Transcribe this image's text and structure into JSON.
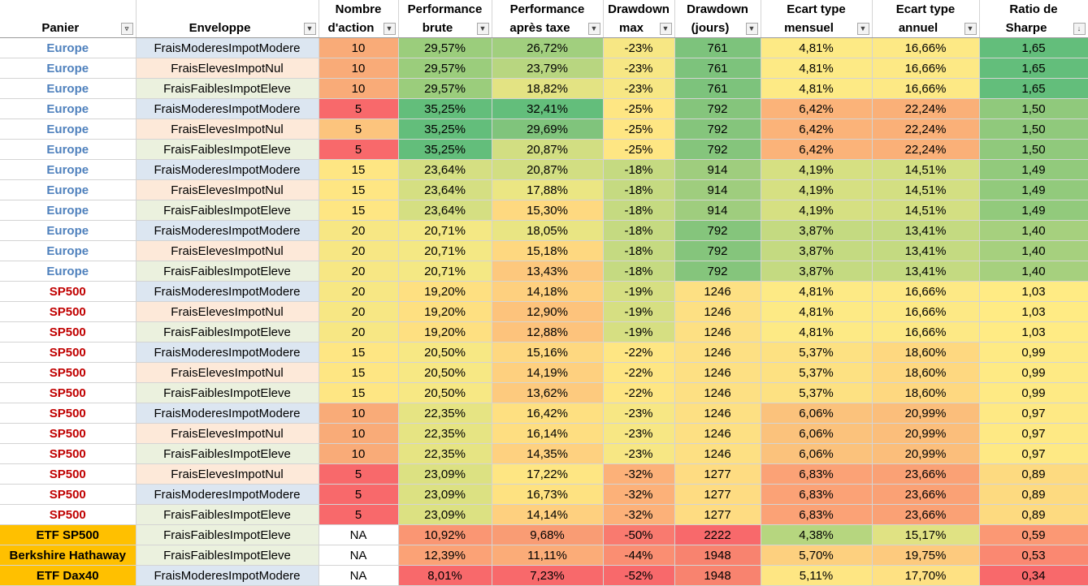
{
  "columns": [
    {
      "line1": "",
      "line2": "Panier",
      "filter": "funnel"
    },
    {
      "line1": "",
      "line2": "Enveloppe",
      "filter": "dropdown"
    },
    {
      "line1": "Nombre",
      "line2": "d'action",
      "filter": "dropdown"
    },
    {
      "line1": "Performance",
      "line2": "brute",
      "filter": "dropdown"
    },
    {
      "line1": "Performance",
      "line2": "après taxe",
      "filter": "dropdown"
    },
    {
      "line1": "Drawdown",
      "line2": "max",
      "filter": "dropdown"
    },
    {
      "line1": "Drawdown",
      "line2": "(jours)",
      "filter": "dropdown"
    },
    {
      "line1": "Ecart type",
      "line2": "mensuel",
      "filter": "dropdown"
    },
    {
      "line1": "Ecart type",
      "line2": "annuel",
      "filter": "dropdown"
    },
    {
      "line1": "Ratio de",
      "line2": "Sharpe",
      "filter": "sort-desc"
    }
  ],
  "rows": [
    {
      "panier": "Europe",
      "env": "FraisModeresImpotModere",
      "cells": [
        "10",
        "29,57%",
        "26,72%",
        "-23%",
        "761",
        "4,81%",
        "16,66%",
        "1,65"
      ],
      "colors": [
        "#f9ab78",
        "#9bcd7c",
        "#a1cf7e",
        "#f7e784",
        "#7dc37c",
        "#fdea85",
        "#fde985",
        "#63be7b"
      ]
    },
    {
      "panier": "Europe",
      "env": "FraisElevesImpotNul",
      "cells": [
        "10",
        "29,57%",
        "23,79%",
        "-23%",
        "761",
        "4,81%",
        "16,66%",
        "1,65"
      ],
      "colors": [
        "#f9ab78",
        "#9bcd7c",
        "#b8d680",
        "#f7e784",
        "#7dc37c",
        "#fdea85",
        "#fde985",
        "#63be7b"
      ]
    },
    {
      "panier": "Europe",
      "env": "FraisFaiblesImpotEleve",
      "cells": [
        "10",
        "29,57%",
        "18,82%",
        "-23%",
        "761",
        "4,81%",
        "16,66%",
        "1,65"
      ],
      "colors": [
        "#f9ab78",
        "#9bcd7c",
        "#e3e383",
        "#f7e784",
        "#7dc37c",
        "#fdea85",
        "#fde985",
        "#63be7b"
      ]
    },
    {
      "panier": "Europe",
      "env": "FraisModeresImpotModere",
      "cells": [
        "5",
        "35,25%",
        "32,41%",
        "-25%",
        "792",
        "6,42%",
        "22,24%",
        "1,50"
      ],
      "colors": [
        "#f8696b",
        "#63be7b",
        "#63be7b",
        "#fee683",
        "#85c57c",
        "#fbb379",
        "#fab078",
        "#90c97c"
      ]
    },
    {
      "panier": "Europe",
      "env": "FraisElevesImpotNul",
      "cells": [
        "5",
        "35,25%",
        "29,69%",
        "-25%",
        "792",
        "6,42%",
        "22,24%",
        "1,50"
      ],
      "colors": [
        "#fcc47d",
        "#63be7b",
        "#80c47c",
        "#fee683",
        "#85c57c",
        "#fbb379",
        "#fab078",
        "#90c97c"
      ]
    },
    {
      "panier": "Europe",
      "env": "FraisFaiblesImpotEleve",
      "cells": [
        "5",
        "35,25%",
        "20,87%",
        "-25%",
        "792",
        "6,42%",
        "22,24%",
        "1,50"
      ],
      "colors": [
        "#f8696b",
        "#63be7b",
        "#d2de82",
        "#fee683",
        "#85c57c",
        "#fbb379",
        "#fab078",
        "#90c97c"
      ]
    },
    {
      "panier": "Europe",
      "env": "FraisModeresImpotModere",
      "cells": [
        "15",
        "23,64%",
        "20,87%",
        "-18%",
        "914",
        "4,19%",
        "14,51%",
        "1,49"
      ],
      "colors": [
        "#fee683",
        "#d5df82",
        "#d2de82",
        "#c5da81",
        "#9fcd7e",
        "#d6e082",
        "#d3df82",
        "#92ca7c"
      ]
    },
    {
      "panier": "Europe",
      "env": "FraisElevesImpotNul",
      "cells": [
        "15",
        "23,64%",
        "17,88%",
        "-18%",
        "914",
        "4,19%",
        "14,51%",
        "1,49"
      ],
      "colors": [
        "#fee683",
        "#d5df82",
        "#ebe683",
        "#c5da81",
        "#9fcd7e",
        "#d6e082",
        "#d3df82",
        "#92ca7c"
      ]
    },
    {
      "panier": "Europe",
      "env": "FraisFaiblesImpotEleve",
      "cells": [
        "15",
        "23,64%",
        "15,30%",
        "-18%",
        "914",
        "4,19%",
        "14,51%",
        "1,49"
      ],
      "colors": [
        "#fee683",
        "#d5df82",
        "#fed980",
        "#c5da81",
        "#9fcd7e",
        "#d6e082",
        "#d3df82",
        "#92ca7c"
      ]
    },
    {
      "panier": "Europe",
      "env": "FraisModeresImpotModere",
      "cells": [
        "20",
        "20,71%",
        "18,05%",
        "-18%",
        "792",
        "3,87%",
        "13,41%",
        "1,40"
      ],
      "colors": [
        "#f7e784",
        "#f4e884",
        "#e9e583",
        "#c5da81",
        "#85c57c",
        "#c4da81",
        "#c4da81",
        "#a6d07e"
      ]
    },
    {
      "panier": "Europe",
      "env": "FraisElevesImpotNul",
      "cells": [
        "20",
        "20,71%",
        "15,18%",
        "-18%",
        "792",
        "3,87%",
        "13,41%",
        "1,40"
      ],
      "colors": [
        "#f7e784",
        "#f4e884",
        "#fed880",
        "#c5da81",
        "#85c57c",
        "#c4da81",
        "#c4da81",
        "#a6d07e"
      ]
    },
    {
      "panier": "Europe",
      "env": "FraisFaiblesImpotEleve",
      "cells": [
        "20",
        "20,71%",
        "13,43%",
        "-18%",
        "792",
        "3,87%",
        "13,41%",
        "1,40"
      ],
      "colors": [
        "#f7e784",
        "#f4e884",
        "#fdc87d",
        "#c5da81",
        "#85c57c",
        "#c4da81",
        "#c4da81",
        "#a6d07e"
      ]
    },
    {
      "panier": "SP500",
      "env": "FraisModeresImpotModere",
      "cells": [
        "20",
        "19,20%",
        "14,18%",
        "-19%",
        "1246",
        "4,81%",
        "16,66%",
        "1,03"
      ],
      "colors": [
        "#f7e784",
        "#fee081",
        "#fed07f",
        "#d6df82",
        "#fde083",
        "#fdea85",
        "#fde985",
        "#ffeb84"
      ]
    },
    {
      "panier": "SP500",
      "env": "FraisElevesImpotNul",
      "cells": [
        "20",
        "19,20%",
        "12,90%",
        "-19%",
        "1246",
        "4,81%",
        "16,66%",
        "1,03"
      ],
      "colors": [
        "#f7e784",
        "#fee081",
        "#fdc37c",
        "#d6df82",
        "#fde083",
        "#fdea85",
        "#fde985",
        "#ffeb84"
      ]
    },
    {
      "panier": "SP500",
      "env": "FraisFaiblesImpotEleve",
      "cells": [
        "20",
        "19,20%",
        "12,88%",
        "-19%",
        "1246",
        "4,81%",
        "16,66%",
        "1,03"
      ],
      "colors": [
        "#f7e784",
        "#fee081",
        "#fdc37c",
        "#d6df82",
        "#fde083",
        "#fdea85",
        "#fde985",
        "#ffeb84"
      ]
    },
    {
      "panier": "SP500",
      "env": "FraisModeresImpotModere",
      "cells": [
        "15",
        "20,50%",
        "15,16%",
        "-22%",
        "1246",
        "5,37%",
        "18,60%",
        "0,99"
      ],
      "colors": [
        "#fee683",
        "#f7e884",
        "#fed880",
        "#fee683",
        "#fde083",
        "#fde182",
        "#fed880",
        "#feea84"
      ]
    },
    {
      "panier": "SP500",
      "env": "FraisElevesImpotNul",
      "cells": [
        "15",
        "20,50%",
        "14,19%",
        "-22%",
        "1246",
        "5,37%",
        "18,60%",
        "0,99"
      ],
      "colors": [
        "#fee683",
        "#f7e884",
        "#fed07f",
        "#fee683",
        "#fde083",
        "#fde182",
        "#fed880",
        "#feea84"
      ]
    },
    {
      "panier": "SP500",
      "env": "FraisFaiblesImpotEleve",
      "cells": [
        "15",
        "20,50%",
        "13,62%",
        "-22%",
        "1246",
        "5,37%",
        "18,60%",
        "0,99"
      ],
      "colors": [
        "#fee683",
        "#f7e884",
        "#fdca7e",
        "#fee683",
        "#fde083",
        "#fde182",
        "#fed880",
        "#feea84"
      ]
    },
    {
      "panier": "SP500",
      "env": "FraisModeresImpotModere",
      "cells": [
        "10",
        "22,35%",
        "16,42%",
        "-23%",
        "1246",
        "6,06%",
        "20,99%",
        "0,97"
      ],
      "colors": [
        "#f9ab78",
        "#e6e483",
        "#fee081",
        "#f7e784",
        "#fde083",
        "#fbc27c",
        "#fbbe7b",
        "#fee984"
      ]
    },
    {
      "panier": "SP500",
      "env": "FraisElevesImpotNul",
      "cells": [
        "10",
        "22,35%",
        "16,14%",
        "-23%",
        "1246",
        "6,06%",
        "20,99%",
        "0,97"
      ],
      "colors": [
        "#f9ab78",
        "#e6e483",
        "#fede81",
        "#f7e784",
        "#fde083",
        "#fbc27c",
        "#fbbe7b",
        "#fee984"
      ]
    },
    {
      "panier": "SP500",
      "env": "FraisFaiblesImpotEleve",
      "cells": [
        "10",
        "22,35%",
        "14,35%",
        "-23%",
        "1246",
        "6,06%",
        "20,99%",
        "0,97"
      ],
      "colors": [
        "#f9ab78",
        "#e6e483",
        "#fed180",
        "#f7e784",
        "#fde083",
        "#fbc27c",
        "#fbbe7b",
        "#fee984"
      ]
    },
    {
      "panier": "SP500",
      "env": "FraisElevesImpotNul",
      "cells": [
        "5",
        "23,09%",
        "17,22%",
        "-32%",
        "1277",
        "6,83%",
        "23,66%",
        "0,89"
      ],
      "colors": [
        "#f8696b",
        "#dce182",
        "#fee683",
        "#fcb179",
        "#fedc82",
        "#fba276",
        "#faa175",
        "#fdda80"
      ]
    },
    {
      "panier": "SP500",
      "env": "FraisModeresImpotModere",
      "cells": [
        "5",
        "23,09%",
        "16,73%",
        "-32%",
        "1277",
        "6,83%",
        "23,66%",
        "0,89"
      ],
      "colors": [
        "#f8696b",
        "#dce182",
        "#fee281",
        "#fcb179",
        "#fedc82",
        "#fba276",
        "#faa175",
        "#fdda80"
      ]
    },
    {
      "panier": "SP500",
      "env": "FraisFaiblesImpotEleve",
      "cells": [
        "5",
        "23,09%",
        "14,14%",
        "-32%",
        "1277",
        "6,83%",
        "23,66%",
        "0,89"
      ],
      "colors": [
        "#f8696b",
        "#dce182",
        "#fed07f",
        "#fcb179",
        "#fedc82",
        "#fba276",
        "#faa175",
        "#fdda80"
      ]
    },
    {
      "panier": "ETF SP500",
      "env": "FraisFaiblesImpotEleve",
      "cells": [
        "NA",
        "10,92%",
        "9,68%",
        "-50%",
        "2222",
        "4,38%",
        "15,17%",
        "0,59"
      ],
      "colors": [
        "#ffffff",
        "#fa9673",
        "#f99c74",
        "#f97a6f",
        "#f8696b",
        "#b6d67f",
        "#e0e283",
        "#fb9874"
      ]
    },
    {
      "panier": "Berkshire Hathaway",
      "env": "FraisFaiblesImpotEleve",
      "cells": [
        "NA",
        "12,39%",
        "11,11%",
        "-44%",
        "1948",
        "5,70%",
        "19,75%",
        "0,53"
      ],
      "colors": [
        "#ffffff",
        "#fba276",
        "#fbac78",
        "#fa8e72",
        "#f8836f",
        "#fdd07f",
        "#fdca7e",
        "#fa8871"
      ]
    },
    {
      "panier": "ETF Dax40",
      "env": "FraisModeresImpotModere",
      "cells": [
        "NA",
        "8,01%",
        "7,23%",
        "-52%",
        "1948",
        "5,11%",
        "17,70%",
        "0,34"
      ],
      "colors": [
        "#ffffff",
        "#f8696b",
        "#f8696b",
        "#f8696b",
        "#f8836f",
        "#fee683",
        "#fee183",
        "#f8696b"
      ]
    }
  ]
}
